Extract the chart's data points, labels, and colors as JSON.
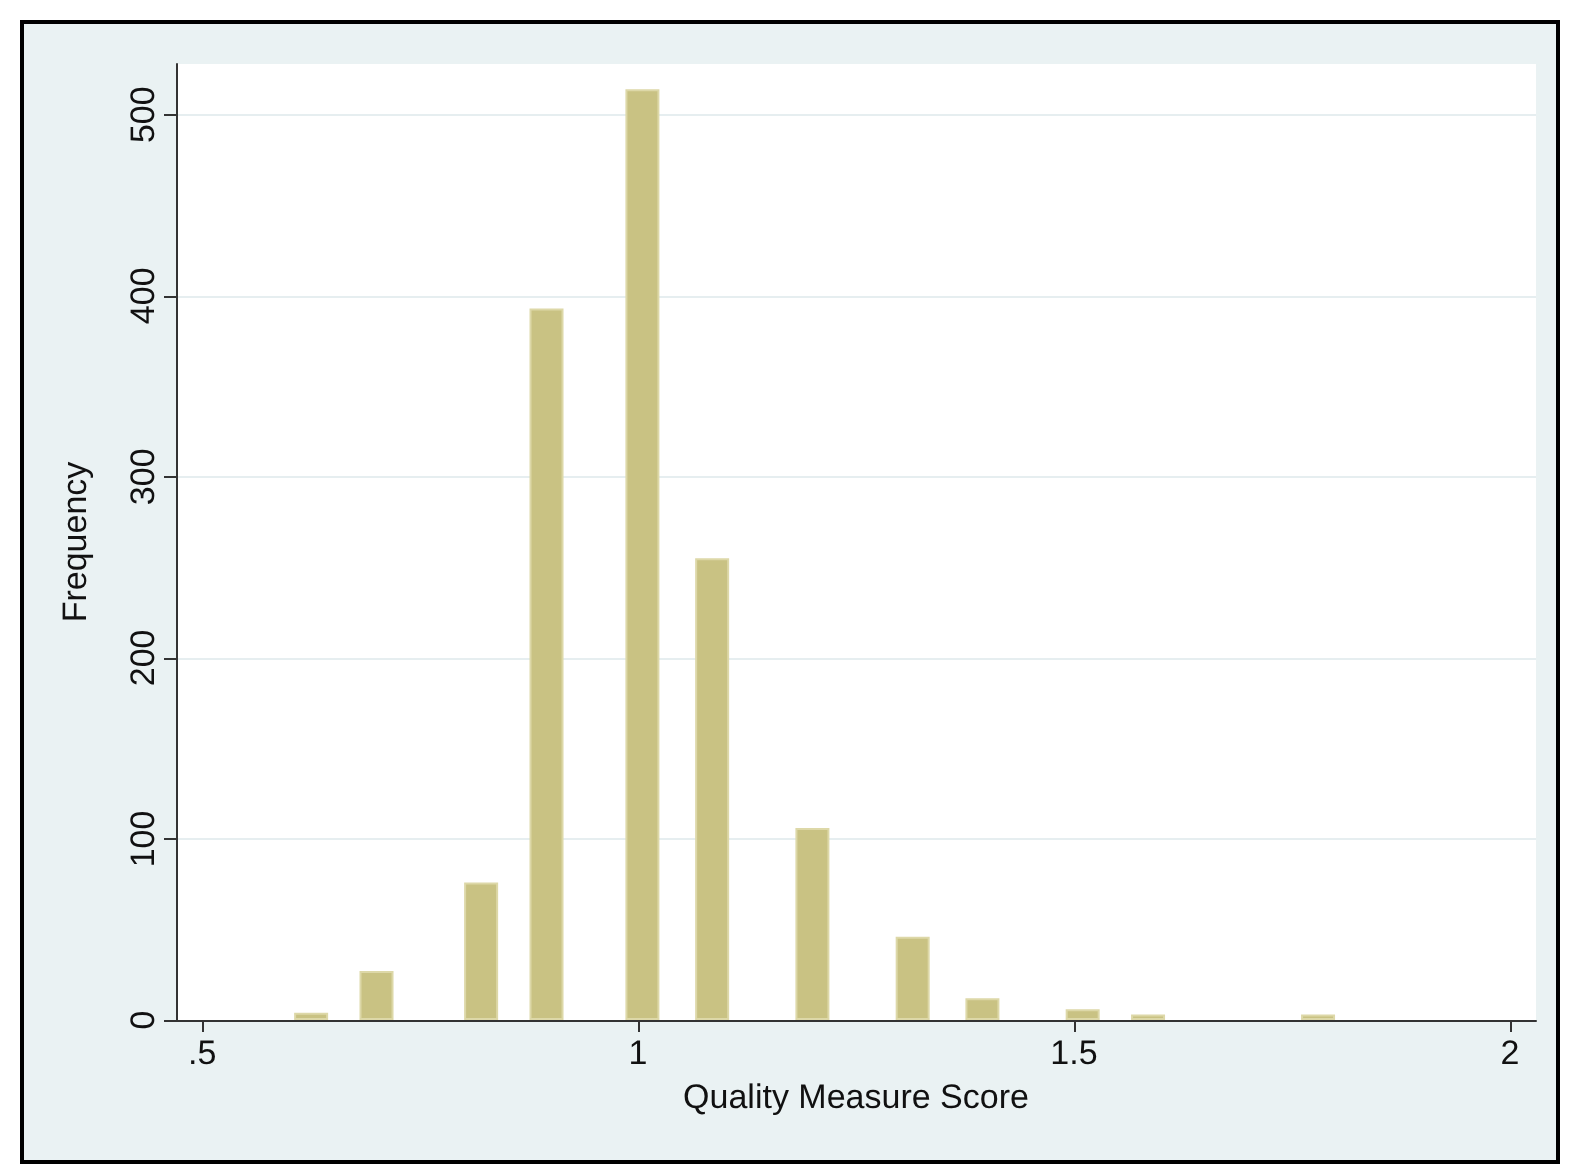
{
  "chart_data": {
    "type": "bar",
    "xlabel": "Quality Measure Score",
    "ylabel": "Frequency",
    "x": [
      0.625,
      0.7,
      0.82,
      0.895,
      1.005,
      1.085,
      1.2,
      1.315,
      1.395,
      1.51,
      1.585,
      1.78
    ],
    "values": [
      4,
      27,
      76,
      393,
      514,
      255,
      106,
      46,
      12,
      6,
      3,
      3
    ],
    "color": "#c9c283",
    "xlim": [
      0.47,
      2.03
    ],
    "xticks": [
      {
        "value": 0.5,
        "label": ".5"
      },
      1,
      1.5,
      2
    ],
    "ylim": [
      0,
      528
    ],
    "yticks": [
      0,
      100,
      200,
      300,
      400,
      500
    ],
    "grid": "y"
  }
}
